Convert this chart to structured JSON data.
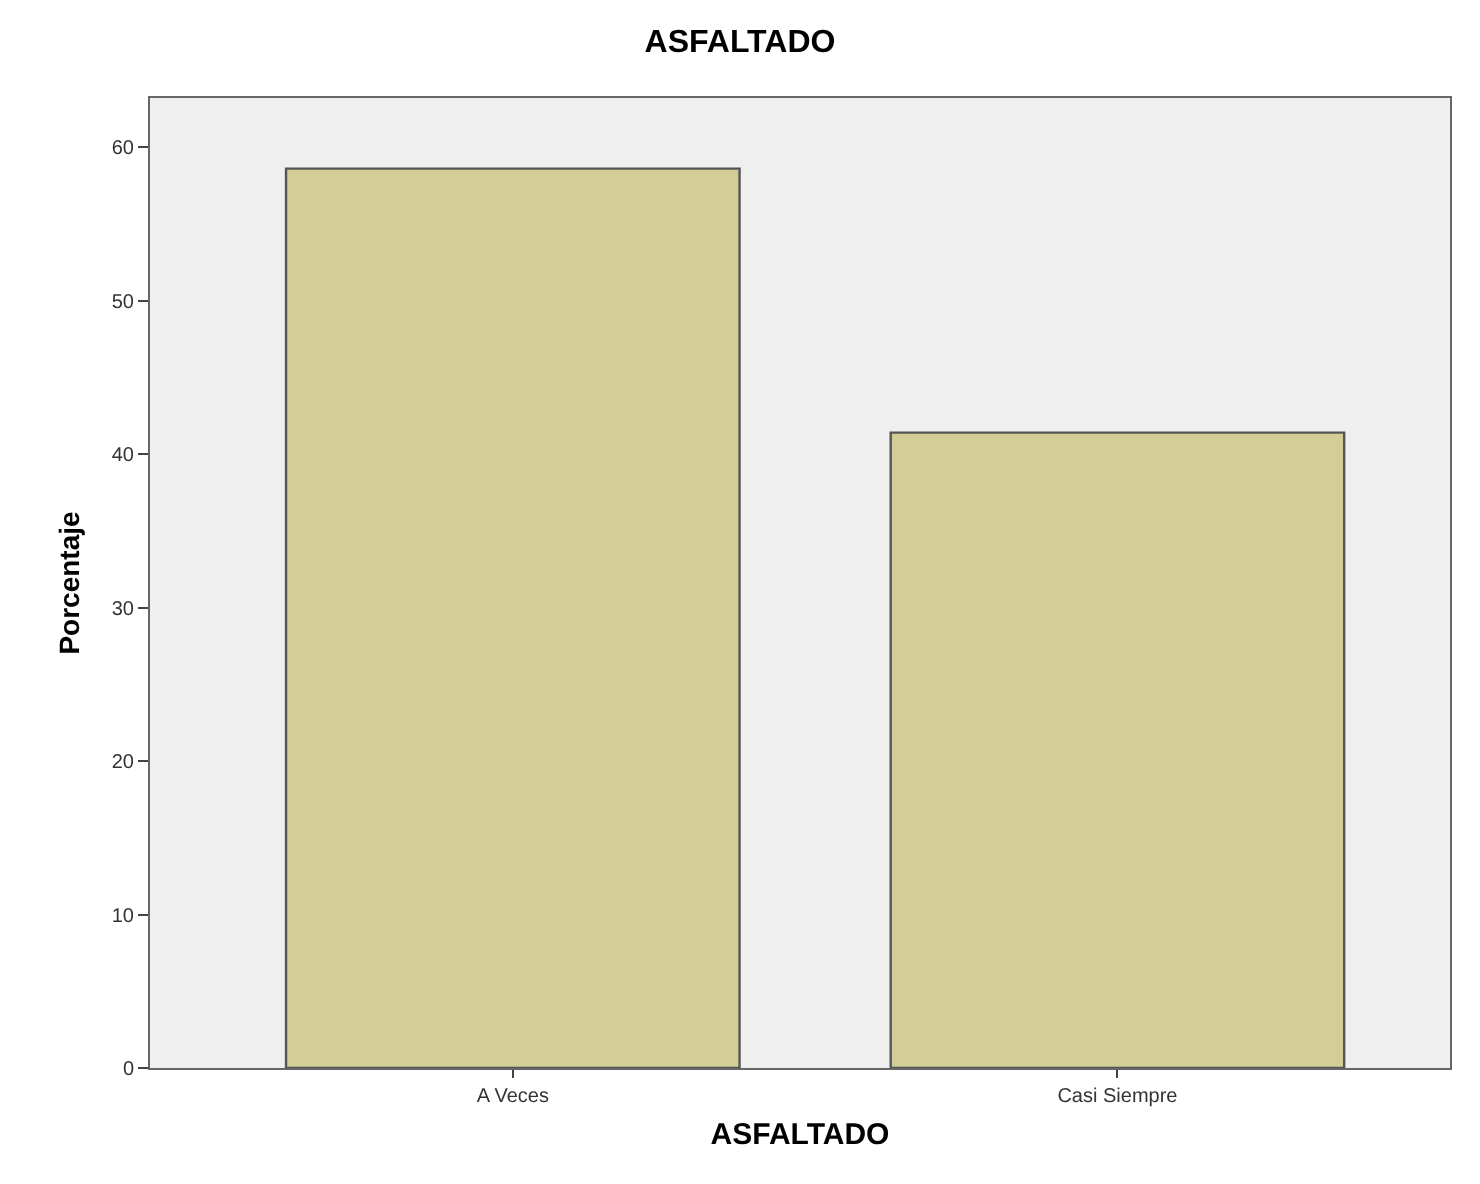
{
  "chart_data": {
    "type": "bar",
    "title": "ASFALTADO",
    "xlabel": "ASFALTADO",
    "ylabel": "Porcentaje",
    "categories": [
      "A Veces",
      "Casi Siempre"
    ],
    "series": [
      {
        "color": "#d3ce97",
        "values": [
          58.6,
          41.4
        ]
      }
    ],
    "ylim": [
      0,
      63.2
    ],
    "yticks": [
      0,
      10,
      20,
      30,
      40,
      50,
      60
    ]
  }
}
